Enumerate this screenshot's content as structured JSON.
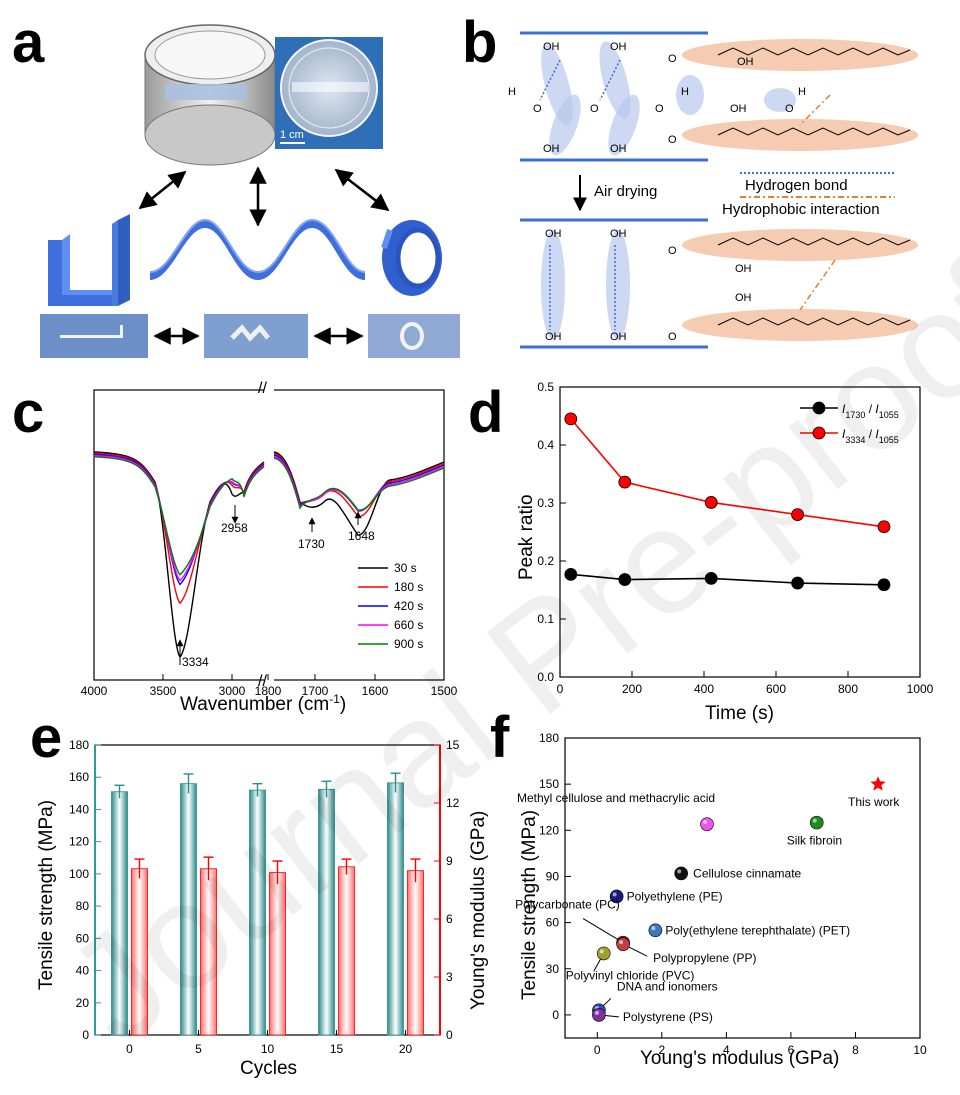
{
  "panel_labels": {
    "a": "a",
    "b": "b",
    "c": "c",
    "d": "d",
    "e": "e",
    "f": "f"
  },
  "panel_a": {
    "scale_bar": "1 cm"
  },
  "panel_b": {
    "oh": "OH",
    "o": "O",
    "h": "H",
    "arrow_label": "Air drying",
    "legend_hbond": "Hydrogen  bond",
    "legend_hydrophobic": "Hydrophobic  interaction"
  },
  "watermark": "Journal Pre-proofs",
  "chart_data": [
    {
      "panel": "c",
      "type": "line",
      "xlabel": "Wavenumber (cm",
      "xlabel_sup": "-1",
      "xlabel_close": ")",
      "xticks": [
        "4000",
        "3500",
        "3000",
        "1800",
        "1700",
        "1600",
        "1500"
      ],
      "axis_break": "//",
      "series": [
        {
          "name": "30 s",
          "color": "#000000"
        },
        {
          "name": "180 s",
          "color": "#ff0000"
        },
        {
          "name": "420 s",
          "color": "#0000ff"
        },
        {
          "name": "660 s",
          "color": "#ff00ff"
        },
        {
          "name": "900 s",
          "color": "#008000"
        }
      ],
      "peak_labels": [
        "3334",
        "2958",
        "1730",
        "1648"
      ]
    },
    {
      "panel": "d",
      "type": "line",
      "x": [
        30,
        180,
        420,
        660,
        900
      ],
      "series": [
        {
          "name_main": "I",
          "name_sub1": "1730",
          "name_slash": " / ",
          "name_main2": "I",
          "name_sub2": "1055",
          "color": "#000000",
          "values": [
            0.177,
            0.168,
            0.17,
            0.162,
            0.159
          ]
        },
        {
          "name_main": "I",
          "name_sub1": "3334",
          "name_slash": " / ",
          "name_main2": "I",
          "name_sub2": "1055",
          "color": "#ff0000",
          "values": [
            0.445,
            0.336,
            0.301,
            0.28,
            0.259
          ]
        }
      ],
      "xlabel": "Time (s)",
      "ylabel": "Peak ratio",
      "xlim": [
        0,
        1000
      ],
      "ylim": [
        0.0,
        0.5
      ],
      "xticks": [
        "0",
        "200",
        "400",
        "600",
        "800",
        "1000"
      ],
      "yticks": [
        "0.0",
        "0.1",
        "0.2",
        "0.3",
        "0.4",
        "0.5"
      ]
    },
    {
      "panel": "e",
      "type": "bar",
      "categories": [
        "0",
        "5",
        "10",
        "15",
        "20"
      ],
      "series": [
        {
          "axis": "left",
          "color": "#2e8b8b",
          "values": [
            151,
            156,
            152,
            152.5,
            156.5
          ],
          "errors": [
            4,
            6,
            4,
            5,
            6
          ]
        },
        {
          "axis": "right",
          "color": "#ff0000",
          "values": [
            8.6,
            8.6,
            8.4,
            8.7,
            8.5
          ],
          "errors": [
            0.5,
            0.6,
            0.6,
            0.4,
            0.6
          ]
        }
      ],
      "xlabel": "Cycles",
      "ylabel_left": "Tensile strength (MPa)",
      "ylabel_right": "Young's modulus (GPa)",
      "ylim_left": [
        0,
        180
      ],
      "ylim_right": [
        0,
        15
      ],
      "yticks_left": [
        "0",
        "20",
        "40",
        "60",
        "80",
        "100",
        "120",
        "140",
        "160",
        "180"
      ],
      "yticks_right": [
        "0",
        "3",
        "6",
        "9",
        "12",
        "15"
      ],
      "left_color": "#2e9b9b",
      "right_color": "#ff0000"
    },
    {
      "panel": "f",
      "type": "scatter",
      "xlabel": "Young's modulus (GPa)",
      "ylabel": "Tensile strength (MPa)",
      "xlim": [
        -1,
        10
      ],
      "ylim": [
        -15,
        180
      ],
      "xticks": [
        "0",
        "2",
        "4",
        "6",
        "8",
        "10"
      ],
      "yticks": [
        "0",
        "30",
        "60",
        "90",
        "120",
        "150",
        "180"
      ],
      "points": [
        {
          "label": "This work",
          "x": 8.7,
          "y": 150,
          "color": "#ff0000",
          "marker": "star"
        },
        {
          "label": "Silk fibroin",
          "x": 6.8,
          "y": 125,
          "color": "#1e8c1e"
        },
        {
          "label": "Methyl cellulose and methacrylic acid",
          "x": 3.4,
          "y": 124,
          "color": "#ee55ee"
        },
        {
          "label": "Cellulose cinnamate",
          "x": 2.6,
          "y": 92,
          "color": "#111111"
        },
        {
          "label": "Polyethylene (PE)",
          "x": 0.6,
          "y": 77,
          "color": "#1a1a80"
        },
        {
          "label": "Poly(ethylene terephthalate) (PET)",
          "x": 1.8,
          "y": 55,
          "color": "#3a78c0"
        },
        {
          "label": "Polycarbonate (PC)",
          "x": 0.8,
          "y": 47,
          "color": "#8b1a1a"
        },
        {
          "label": "Polypropylene (PP)",
          "x": 0.8,
          "y": 46,
          "color": "#c04040"
        },
        {
          "label": "Polyvinyl chloride (PVC)",
          "x": 0.2,
          "y": 40,
          "color": "#a0a030"
        },
        {
          "label": "DNA and ionomers",
          "x": 0.05,
          "y": 3,
          "color": "#3050b0"
        },
        {
          "label": "Polystyrene (PS)",
          "x": 0.05,
          "y": 0,
          "color": "#8030a0"
        }
      ]
    }
  ]
}
